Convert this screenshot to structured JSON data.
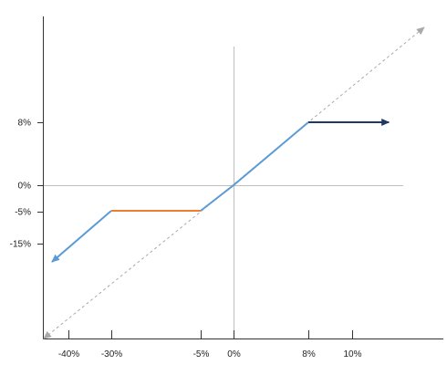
{
  "chart_data": {
    "type": "line",
    "title": "",
    "xlabel": "",
    "ylabel": "",
    "x_ticks": [
      {
        "value": -40,
        "label": "-40%"
      },
      {
        "value": -30,
        "label": "-30%"
      },
      {
        "value": -5,
        "label": "-5%"
      },
      {
        "value": 0,
        "label": "0%"
      },
      {
        "value": 8,
        "label": "8%"
      },
      {
        "value": 10,
        "label": "10%"
      }
    ],
    "y_ticks": [
      {
        "value": 8,
        "label": "8%"
      },
      {
        "value": 0,
        "label": "0%"
      },
      {
        "value": -5,
        "label": "-5%"
      },
      {
        "value": -15,
        "label": "-15%"
      }
    ],
    "grid": false,
    "series": [
      {
        "style": "dashed",
        "color": "#a9a9a9",
        "arrow": "both",
        "x": [
          -44.5,
          -5,
          8,
          39.5
        ],
        "y": [
          -44.5,
          -5,
          8,
          39.5
        ]
      },
      {
        "style": "solid",
        "color": "#5b9bd5",
        "arrow": "start",
        "x": [
          -43,
          -30
        ],
        "y": [
          -17,
          -4
        ]
      },
      {
        "style": "solid",
        "color": "#5b9bd5",
        "arrow": "none",
        "x": [
          -5,
          0,
          8
        ],
        "y": [
          -4,
          0,
          8
        ]
      },
      {
        "style": "solid",
        "color": "#ed7d31",
        "arrow": "none",
        "x": [
          -30,
          -5
        ],
        "y": [
          -4,
          -4
        ]
      },
      {
        "style": "solid",
        "color": "#1f3864",
        "arrow": "end",
        "x": [
          8,
          25
        ],
        "y": [
          8,
          8
        ]
      }
    ]
  }
}
